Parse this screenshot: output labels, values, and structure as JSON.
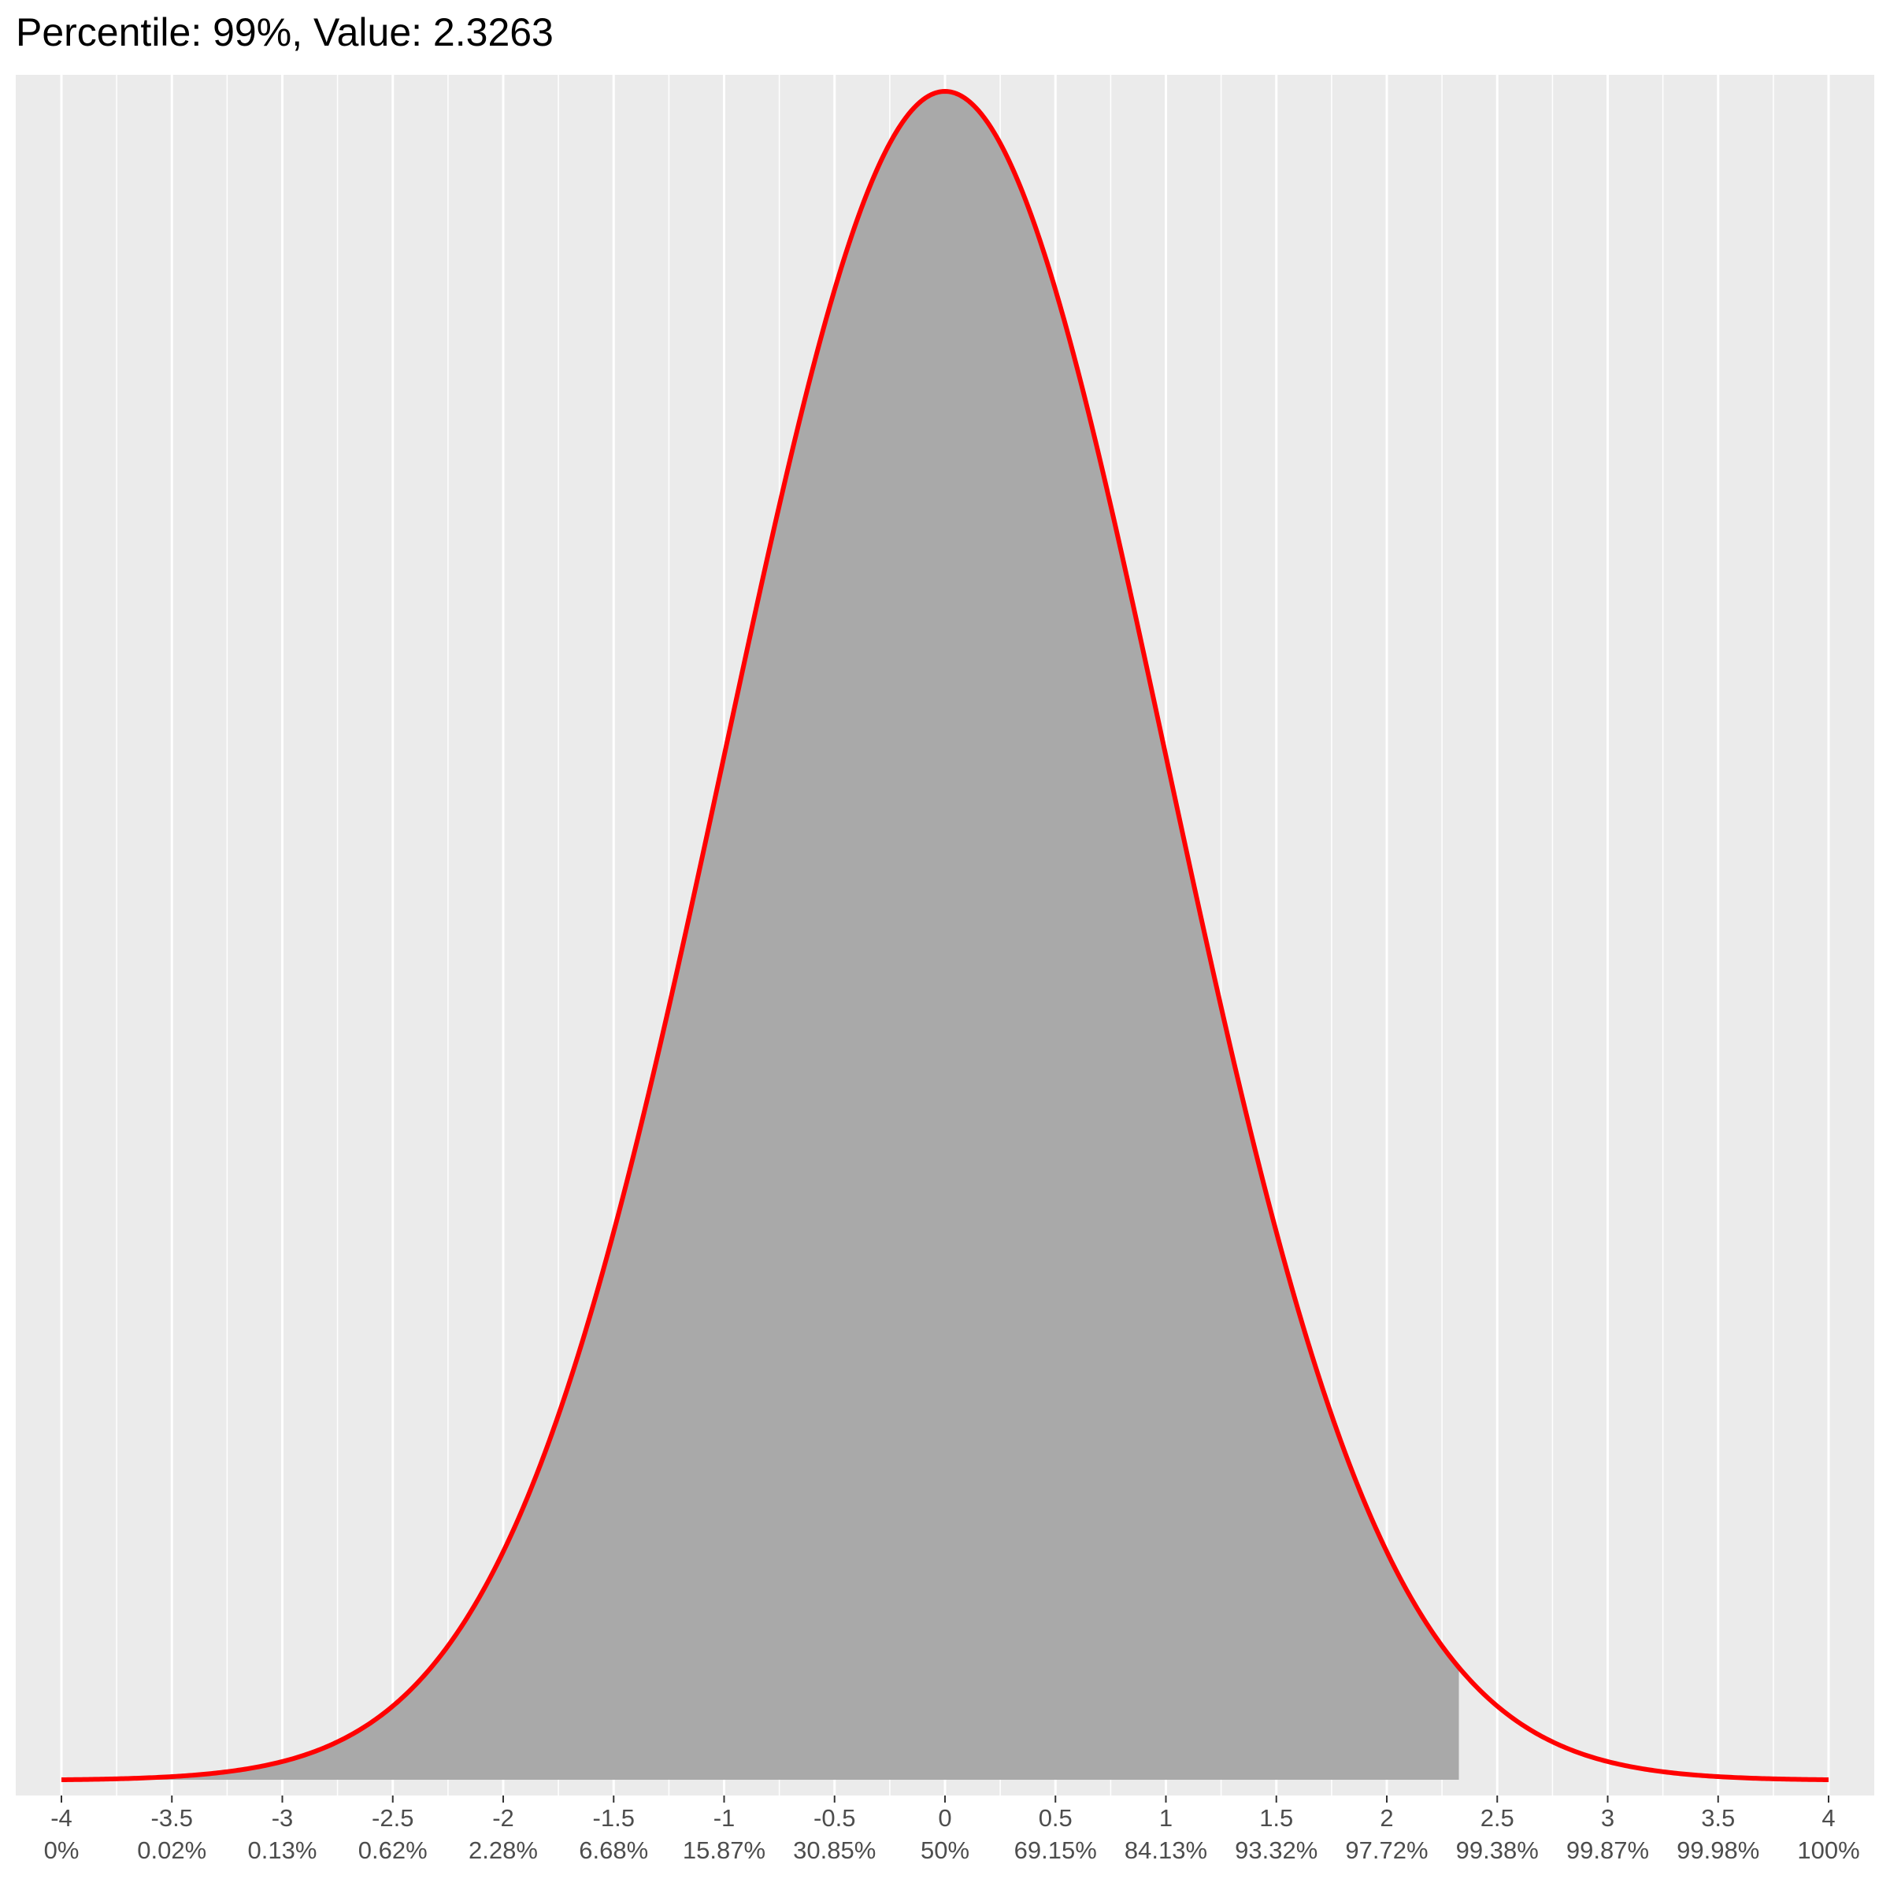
{
  "chart_data": {
    "type": "area",
    "title": "Percentile: 99%, Value: 2.3263",
    "distribution": "standard normal density",
    "percentile": "99%",
    "value": 2.3263,
    "xlim": [
      -4,
      4
    ],
    "x_ticks": [
      {
        "value": -4,
        "label": "-4",
        "percent": "0%"
      },
      {
        "value": -3.5,
        "label": "-3.5",
        "percent": "0.02%"
      },
      {
        "value": -3,
        "label": "-3",
        "percent": "0.13%"
      },
      {
        "value": -2.5,
        "label": "-2.5",
        "percent": "0.62%"
      },
      {
        "value": -2,
        "label": "-2",
        "percent": "2.28%"
      },
      {
        "value": -1.5,
        "label": "-1.5",
        "percent": "6.68%"
      },
      {
        "value": -1,
        "label": "-1",
        "percent": "15.87%"
      },
      {
        "value": -0.5,
        "label": "-0.5",
        "percent": "30.85%"
      },
      {
        "value": 0,
        "label": "0",
        "percent": "50%"
      },
      {
        "value": 0.5,
        "label": "0.5",
        "percent": "69.15%"
      },
      {
        "value": 1,
        "label": "1",
        "percent": "84.13%"
      },
      {
        "value": 1.5,
        "label": "1.5",
        "percent": "93.32%"
      },
      {
        "value": 2,
        "label": "2",
        "percent": "97.72%"
      },
      {
        "value": 2.5,
        "label": "2.5",
        "percent": "99.38%"
      },
      {
        "value": 3,
        "label": "3",
        "percent": "99.87%"
      },
      {
        "value": 3.5,
        "label": "3.5",
        "percent": "99.98%"
      },
      {
        "value": 4,
        "label": "4",
        "percent": "100%"
      }
    ],
    "shaded_region": {
      "from": -4,
      "to": 2.3263
    },
    "curve_color": "#ff0000",
    "fill_color": "#a9a9a9",
    "panel_background": "#ebebeb",
    "grid": true
  }
}
